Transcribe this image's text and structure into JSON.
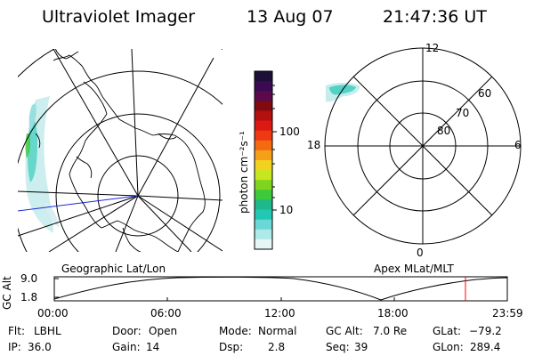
{
  "header": {
    "instrument": "Ultraviolet Imager",
    "date": "13 Aug 07",
    "time": "21:47:36 UT"
  },
  "geo_panel": {
    "label": "Geographic Lat/Lon"
  },
  "apex_panel": {
    "label": "Apex MLat/MLT",
    "mlt_labels": [
      "12",
      "18",
      "6",
      "0"
    ],
    "mlat_labels": [
      "60",
      "70",
      "80"
    ]
  },
  "colorbar": {
    "unit": "photon cm⁻²s⁻¹",
    "ticks": [
      "100",
      "10"
    ],
    "colors": [
      "#1c0f38",
      "#3a0a52",
      "#5a0a4a",
      "#800a10",
      "#b41010",
      "#dc1a12",
      "#ee3a12",
      "#f36a12",
      "#f5a018",
      "#f2d21e",
      "#c8e61e",
      "#7ed41e",
      "#3ec83c",
      "#1eb88a",
      "#22c8b4",
      "#6ad8d4",
      "#aeeae8",
      "#e6f6f6"
    ]
  },
  "alt_plot": {
    "ylabel": "GC Alt",
    "yticks": [
      "9.0",
      "1.8"
    ],
    "xticks": [
      "00:00",
      "06:00",
      "12:00",
      "18:00",
      "23:59"
    ],
    "marker_color": "#ff0000"
  },
  "info": {
    "row1": [
      {
        "label": "Flt:",
        "value": "LBHL"
      },
      {
        "label": "Door:",
        "value": "Open"
      },
      {
        "label": "Mode:",
        "value": "Normal"
      },
      {
        "label": "GC Alt:",
        "value": "7.0 Re"
      },
      {
        "label": "GLat:",
        "value": "−79.2"
      }
    ],
    "row2": [
      {
        "label": "IP:",
        "value": "36.0"
      },
      {
        "label": "Gain:",
        "value": "14"
      },
      {
        "label": "Dsp:",
        "value": "2.8"
      },
      {
        "label": "Seq:",
        "value": "39"
      },
      {
        "label": "GLon:",
        "value": "289.4"
      }
    ]
  }
}
